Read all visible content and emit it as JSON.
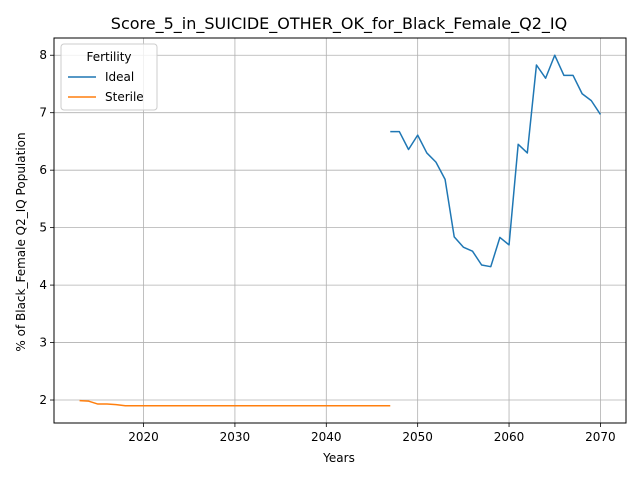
{
  "chart_data": {
    "type": "line",
    "title": "Score_5_in_SUICIDE_OTHER_OK_for_Black_Female_Q2_IQ",
    "xlabel": "Years",
    "ylabel": "% of Black_Female Q2_IQ Population",
    "xlim": [
      2010.2,
      2072.8
    ],
    "ylim": [
      1.6,
      8.3
    ],
    "xticks": [
      2020,
      2030,
      2040,
      2050,
      2060,
      2070
    ],
    "yticks": [
      2,
      3,
      4,
      5,
      6,
      7,
      8
    ],
    "grid": true,
    "legend": {
      "title": "Fertility",
      "placement": "top-left"
    },
    "series": [
      {
        "name": "Ideal",
        "color": "#1f77b4",
        "x": [
          2047,
          2048,
          2049,
          2050,
          2051,
          2052,
          2053,
          2054,
          2055,
          2056,
          2057,
          2058,
          2059,
          2060,
          2061,
          2062,
          2063,
          2064,
          2065,
          2066,
          2067,
          2068,
          2069,
          2070
        ],
        "y": [
          6.67,
          6.67,
          6.36,
          6.61,
          6.3,
          6.14,
          5.84,
          4.84,
          4.66,
          4.59,
          4.35,
          4.32,
          4.83,
          4.7,
          6.45,
          6.3,
          7.83,
          7.6,
          8.0,
          7.65,
          7.65,
          7.33,
          7.21,
          6.97
        ]
      },
      {
        "name": "Sterile",
        "color": "#ff7f0e",
        "x": [
          2013,
          2014,
          2015,
          2016,
          2017,
          2018,
          2019,
          2020,
          2025,
          2030,
          2035,
          2040,
          2045,
          2047
        ],
        "y": [
          1.99,
          1.98,
          1.93,
          1.93,
          1.92,
          1.9,
          1.9,
          1.9,
          1.9,
          1.9,
          1.9,
          1.9,
          1.9,
          1.9
        ]
      }
    ]
  }
}
